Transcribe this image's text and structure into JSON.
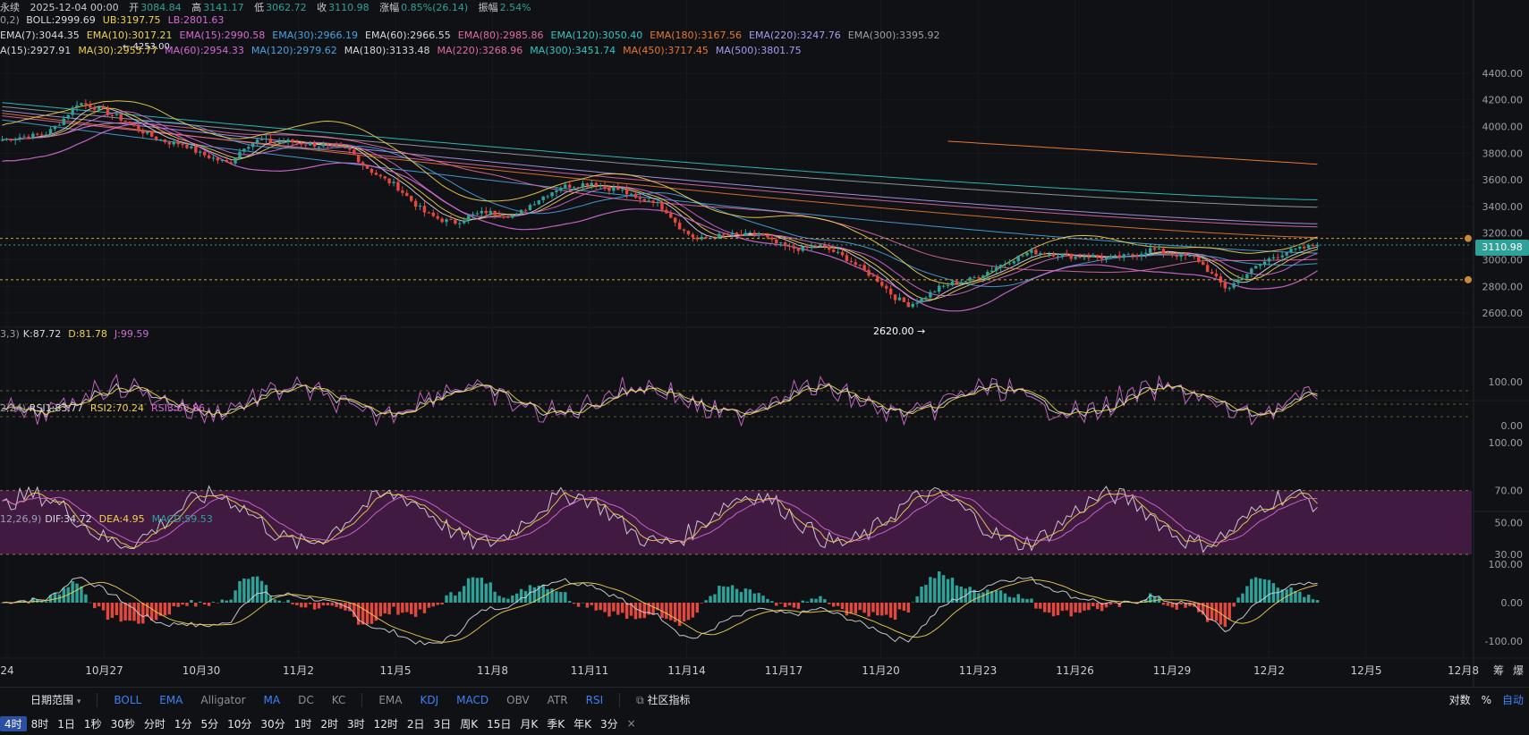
{
  "header": {
    "instrument_fragment": "永续",
    "datetime": "2025-12-04 00:00",
    "open_label": "开",
    "open": "3084.84",
    "high_label": "高",
    "high": "3141.17",
    "low_label": "低",
    "low": "3062.72",
    "close_label": "收",
    "close": "3110.98",
    "change_label": "涨幅",
    "change": "0.85%(26.14)",
    "amp_label": "振幅",
    "amp": "2.54%"
  },
  "legend_boll": {
    "prefix": "0,2)",
    "items": [
      {
        "text": "BOLL:2999.69",
        "color": "#d7d9de"
      },
      {
        "text": "UB:3197.75",
        "color": "#f2d14f"
      },
      {
        "text": "LB:2801.63",
        "color": "#d46ad4"
      }
    ]
  },
  "legend_ema": {
    "items": [
      {
        "text": "EMA(7):3044.35",
        "color": "#d7d9de"
      },
      {
        "text": "EMA(10):3017.21",
        "color": "#f2d14f"
      },
      {
        "text": "EMA(15):2990.58",
        "color": "#d46ad4"
      },
      {
        "text": "EMA(30):2966.19",
        "color": "#4aa3df"
      },
      {
        "text": "EMA(60):2966.55",
        "color": "#d7d9de"
      },
      {
        "text": "EMA(80):2985.86",
        "color": "#e06aa6"
      },
      {
        "text": "EMA(120):3050.40",
        "color": "#33c4c4"
      },
      {
        "text": "EMA(180):3167.56",
        "color": "#e8782f"
      },
      {
        "text": "EMA(220):3247.76",
        "color": "#a89af0"
      },
      {
        "text": "EMA(300):3395.92",
        "color": "#9aa0a8"
      }
    ]
  },
  "legend_ma": {
    "items": [
      {
        "text": "A(15):2927.91",
        "color": "#d7d9de"
      },
      {
        "text": "MA(30):2955.77",
        "color": "#f2d14f"
      },
      {
        "text": "MA(60):2954.33",
        "color": "#d46ad4"
      },
      {
        "text": "MA(120):2979.62",
        "color": "#4aa3df"
      },
      {
        "text": "MA(180):3133.48",
        "color": "#d7d9de"
      },
      {
        "text": "MA(220):3268.96",
        "color": "#e06aa6"
      },
      {
        "text": "MA(300):3451.74",
        "color": "#33c4c4"
      },
      {
        "text": "MA(450):3717.45",
        "color": "#e8782f"
      },
      {
        "text": "MA(500):3801.75",
        "color": "#a89af0"
      }
    ]
  },
  "legend_kdj": {
    "prefix": "3,3)",
    "items": [
      {
        "text": "K:87.72",
        "color": "#d7d9de"
      },
      {
        "text": "D:81.78",
        "color": "#f2d14f"
      },
      {
        "text": "J:99.59",
        "color": "#d46ad4"
      }
    ]
  },
  "legend_rsi": {
    "prefix": "2,24)",
    "items": [
      {
        "text": "RSI1:83.77",
        "color": "#d7d9de"
      },
      {
        "text": "RSI2:70.24",
        "color": "#f2d14f"
      },
      {
        "text": "RSI3:60.86",
        "color": "#d46ad4"
      }
    ]
  },
  "legend_macd": {
    "prefix": "12,26,9)",
    "items": [
      {
        "text": "DIF:34.72",
        "color": "#d7d9de"
      },
      {
        "text": "DEA:4.95",
        "color": "#f2d14f"
      },
      {
        "text": "MACD:59.53",
        "color": "#2ea199"
      }
    ]
  },
  "price_tag": "3110.98",
  "chart_data": {
    "type": "candlestick",
    "price_axis": {
      "ticks": [
        "4400.00",
        "4200.00",
        "4000.00",
        "3800.00",
        "3600.00",
        "3400.00",
        "3200.00",
        "3000.00",
        "2800.00",
        "2600.00"
      ],
      "range": [
        2500,
        4480
      ]
    },
    "kdj_axis": {
      "ticks": [
        "100.00",
        "0.00"
      ]
    },
    "rsi_axis": {
      "ticks": [
        "100.00",
        "70.00",
        "50.00",
        "30.00"
      ]
    },
    "macd_axis": {
      "ticks": [
        "100.00",
        "0.00",
        "-100.00"
      ]
    },
    "x_ticks": [
      "24",
      "10月27",
      "10月30",
      "11月2",
      "11月5",
      "11月8",
      "11月11",
      "11月14",
      "11月17",
      "11月20",
      "11月23",
      "11月26",
      "11月29",
      "12月2",
      "12月5",
      "12月8"
    ],
    "annotations": [
      {
        "label": "4253.00"
      },
      {
        "label": "2620.00"
      }
    ],
    "series_approx": {
      "close": [
        3900,
        3920,
        3930,
        3950,
        4050,
        4180,
        4150,
        4100,
        4050,
        3980,
        3920,
        3880,
        3870,
        3800,
        3760,
        3720,
        3850,
        3900,
        3880,
        3890,
        3870,
        3860,
        3840,
        3820,
        3700,
        3620,
        3560,
        3450,
        3350,
        3300,
        3280,
        3330,
        3360,
        3340,
        3330,
        3420,
        3490,
        3550,
        3560,
        3580,
        3540,
        3520,
        3450,
        3450,
        3360,
        3220,
        3150,
        3170,
        3190,
        3180,
        3200,
        3130,
        3090,
        3080,
        3110,
        3060,
        3000,
        2920,
        2840,
        2720,
        2660,
        2720,
        2790,
        2830,
        2850,
        2900,
        2960,
        3010,
        3060,
        3050,
        3040,
        3020,
        3030,
        3010,
        3020,
        3040,
        3080,
        3050,
        3030,
        3010,
        2890,
        2780,
        2870,
        2950,
        3020,
        3060,
        3085,
        3111
      ]
    },
    "reference_lines": [
      3160,
      2850
    ]
  },
  "toolbar": {
    "range_label": "日期范围",
    "indicators": [
      {
        "label": "BOLL",
        "active": true
      },
      {
        "label": "EMA",
        "active": true
      },
      {
        "label": "Alligator",
        "active": false
      },
      {
        "label": "MA",
        "active": true
      },
      {
        "label": "DC",
        "active": false
      },
      {
        "label": "KC",
        "active": false
      }
    ],
    "sub_indicators": [
      {
        "label": "EMA",
        "active": false
      },
      {
        "label": "KDJ",
        "active": true
      },
      {
        "label": "MACD",
        "active": true
      },
      {
        "label": "OBV",
        "active": false
      },
      {
        "label": "ATR",
        "active": false
      },
      {
        "label": "RSI",
        "active": true
      }
    ],
    "community_label": "社区指标",
    "right_items": [
      "对数",
      "%",
      "自动"
    ],
    "timeframes": [
      "4时",
      "8时",
      "1日",
      "1秒",
      "30秒",
      "分时",
      "1分",
      "5分",
      "10分",
      "30分",
      "1时",
      "2时",
      "3时",
      "12时",
      "2日",
      "3日",
      "周K",
      "15日",
      "月K",
      "季K",
      "年K",
      "3分"
    ],
    "active_timeframe": 0,
    "close_glyph": "×"
  },
  "axis_top_right": [
    "筹",
    "爆"
  ]
}
